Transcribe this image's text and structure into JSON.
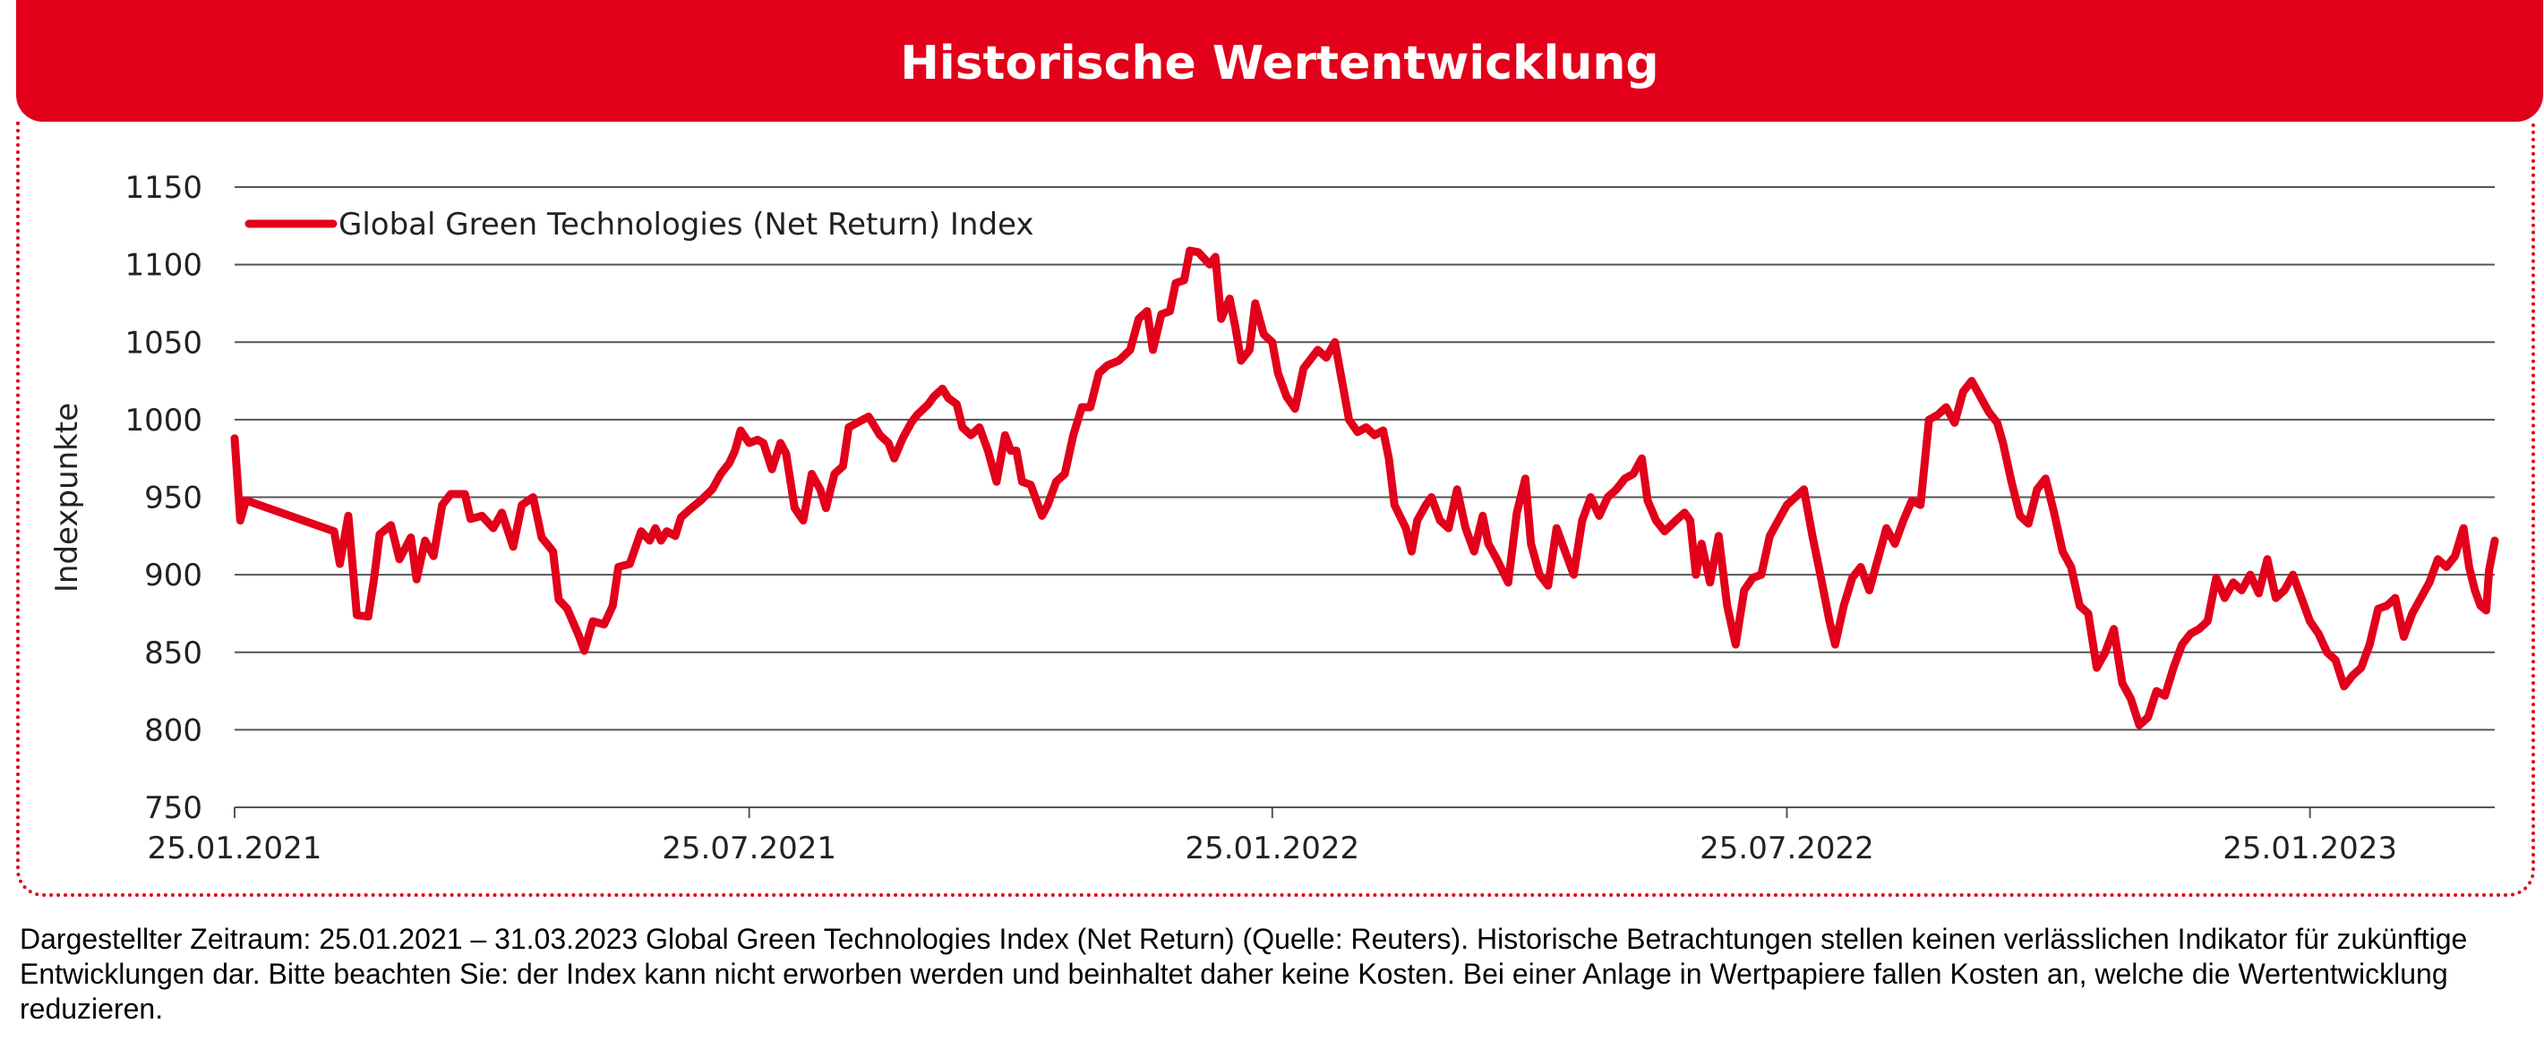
{
  "header": {
    "title": "Historische Wertentwicklung"
  },
  "colors": {
    "brand": "#e2001a",
    "grid": "#555555",
    "series": "#e2001a"
  },
  "footnote": "Dargestellter Zeitraum: 25.01.2021 – 31.03.2023 Global Green Technologies Index (Net Return) (Quelle: Reuters). Historische Betrachtungen stellen keinen verlässlichen Indikator für zukünftige Entwicklungen dar. Bitte beachten Sie: der Index kann nicht erworben werden und beinhaltet daher keine Kosten. Bei einer Anlage in Wertpapiere fallen Kosten an, welche die Wertentwicklung reduzieren.",
  "chart_data": {
    "type": "line",
    "title": "",
    "xlabel": "",
    "ylabel": "Indexpunkte",
    "ylim": [
      750,
      1150
    ],
    "yticks": [
      "750",
      "800",
      "850",
      "900",
      "950",
      "1000",
      "1050",
      "1100",
      "1150"
    ],
    "xrange": [
      "2021-01-25",
      "2023-03-31"
    ],
    "xticks": [
      {
        "date": "2021-01-25",
        "label": "25.01.2021"
      },
      {
        "date": "2021-07-25",
        "label": "25.07.2021"
      },
      {
        "date": "2022-01-25",
        "label": "25.01.2022"
      },
      {
        "date": "2022-07-25",
        "label": "25.07.2022"
      },
      {
        "date": "2023-01-25",
        "label": "25.01.2023"
      }
    ],
    "grid": true,
    "legend": "top-left",
    "series": [
      {
        "name": "Global Green Technologies (Net Return) Index",
        "points": [
          [
            "2021-01-25",
            988
          ],
          [
            "2021-01-27",
            935
          ],
          [
            "2021-01-29",
            948
          ],
          [
            "2021-03-01",
            928
          ],
          [
            "2021-03-03",
            907
          ],
          [
            "2021-03-06",
            938
          ],
          [
            "2021-03-09",
            874
          ],
          [
            "2021-03-13",
            873
          ],
          [
            "2021-03-15",
            897
          ],
          [
            "2021-03-17",
            926
          ],
          [
            "2021-03-21",
            932
          ],
          [
            "2021-03-24",
            910
          ],
          [
            "2021-03-28",
            924
          ],
          [
            "2021-03-30",
            897
          ],
          [
            "2021-04-02",
            922
          ],
          [
            "2021-04-05",
            912
          ],
          [
            "2021-04-08",
            945
          ],
          [
            "2021-04-11",
            952
          ],
          [
            "2021-04-16",
            952
          ],
          [
            "2021-04-18",
            936
          ],
          [
            "2021-04-22",
            938
          ],
          [
            "2021-04-26",
            930
          ],
          [
            "2021-04-29",
            940
          ],
          [
            "2021-05-03",
            918
          ],
          [
            "2021-05-06",
            945
          ],
          [
            "2021-05-10",
            950
          ],
          [
            "2021-05-13",
            924
          ],
          [
            "2021-05-17",
            915
          ],
          [
            "2021-05-19",
            884
          ],
          [
            "2021-05-22",
            878
          ],
          [
            "2021-05-26",
            861
          ],
          [
            "2021-05-28",
            851
          ],
          [
            "2021-05-31",
            870
          ],
          [
            "2021-06-04",
            868
          ],
          [
            "2021-06-07",
            880
          ],
          [
            "2021-06-09",
            905
          ],
          [
            "2021-06-13",
            907
          ],
          [
            "2021-06-17",
            928
          ],
          [
            "2021-06-20",
            922
          ],
          [
            "2021-06-22",
            930
          ],
          [
            "2021-06-24",
            922
          ],
          [
            "2021-06-26",
            928
          ],
          [
            "2021-06-29",
            925
          ],
          [
            "2021-07-01",
            937
          ],
          [
            "2021-07-04",
            942
          ],
          [
            "2021-07-08",
            948
          ],
          [
            "2021-07-12",
            955
          ],
          [
            "2021-07-15",
            965
          ],
          [
            "2021-07-18",
            972
          ],
          [
            "2021-07-20",
            980
          ],
          [
            "2021-07-22",
            993
          ],
          [
            "2021-07-25",
            985
          ],
          [
            "2021-07-28",
            987
          ],
          [
            "2021-07-30",
            985
          ],
          [
            "2021-08-02",
            968
          ],
          [
            "2021-08-05",
            985
          ],
          [
            "2021-08-07",
            978
          ],
          [
            "2021-08-10",
            943
          ],
          [
            "2021-08-13",
            935
          ],
          [
            "2021-08-16",
            965
          ],
          [
            "2021-08-19",
            955
          ],
          [
            "2021-08-21",
            943
          ],
          [
            "2021-08-24",
            965
          ],
          [
            "2021-08-27",
            970
          ],
          [
            "2021-08-29",
            995
          ],
          [
            "2021-09-01",
            998
          ],
          [
            "2021-09-05",
            1002
          ],
          [
            "2021-09-09",
            990
          ],
          [
            "2021-09-12",
            985
          ],
          [
            "2021-09-14",
            975
          ],
          [
            "2021-09-17",
            988
          ],
          [
            "2021-09-20",
            998
          ],
          [
            "2021-09-22",
            1003
          ],
          [
            "2021-09-26",
            1010
          ],
          [
            "2021-09-28",
            1015
          ],
          [
            "2021-10-01",
            1020
          ],
          [
            "2021-10-03",
            1014
          ],
          [
            "2021-10-06",
            1010
          ],
          [
            "2021-10-08",
            995
          ],
          [
            "2021-10-11",
            990
          ],
          [
            "2021-10-14",
            995
          ],
          [
            "2021-10-17",
            980
          ],
          [
            "2021-10-20",
            960
          ],
          [
            "2021-10-23",
            990
          ],
          [
            "2021-10-25",
            980
          ],
          [
            "2021-10-27",
            980
          ],
          [
            "2021-10-29",
            960
          ],
          [
            "2021-11-01",
            958
          ],
          [
            "2021-11-05",
            938
          ],
          [
            "2021-11-07",
            945
          ],
          [
            "2021-11-10",
            960
          ],
          [
            "2021-11-13",
            965
          ],
          [
            "2021-11-16",
            990
          ],
          [
            "2021-11-19",
            1008
          ],
          [
            "2021-11-22",
            1008
          ],
          [
            "2021-11-25",
            1030
          ],
          [
            "2021-11-28",
            1035
          ],
          [
            "2021-12-02",
            1038
          ],
          [
            "2021-12-06",
            1045
          ],
          [
            "2021-12-09",
            1065
          ],
          [
            "2021-12-12",
            1070
          ],
          [
            "2021-12-14",
            1045
          ],
          [
            "2021-12-17",
            1068
          ],
          [
            "2021-12-20",
            1070
          ],
          [
            "2021-12-22",
            1088
          ],
          [
            "2021-12-25",
            1090
          ],
          [
            "2021-12-27",
            1109
          ],
          [
            "2021-12-30",
            1108
          ],
          [
            "2022-01-03",
            1100
          ],
          [
            "2022-01-05",
            1105
          ],
          [
            "2022-01-07",
            1065
          ],
          [
            "2022-01-10",
            1078
          ],
          [
            "2022-01-12",
            1060
          ],
          [
            "2022-01-14",
            1038
          ],
          [
            "2022-01-17",
            1045
          ],
          [
            "2022-01-19",
            1075
          ],
          [
            "2022-01-22",
            1055
          ],
          [
            "2022-01-25",
            1050
          ],
          [
            "2022-01-27",
            1030
          ],
          [
            "2022-01-30",
            1015
          ],
          [
            "2022-02-02",
            1007
          ],
          [
            "2022-02-05",
            1033
          ],
          [
            "2022-02-10",
            1045
          ],
          [
            "2022-02-13",
            1040
          ],
          [
            "2022-02-16",
            1050
          ],
          [
            "2022-02-19",
            1020
          ],
          [
            "2022-02-21",
            1000
          ],
          [
            "2022-02-24",
            992
          ],
          [
            "2022-02-27",
            995
          ],
          [
            "2022-03-02",
            990
          ],
          [
            "2022-03-05",
            993
          ],
          [
            "2022-03-07",
            975
          ],
          [
            "2022-03-09",
            945
          ],
          [
            "2022-03-13",
            930
          ],
          [
            "2022-03-15",
            915
          ],
          [
            "2022-03-17",
            935
          ],
          [
            "2022-03-20",
            945
          ],
          [
            "2022-03-22",
            950
          ],
          [
            "2022-03-25",
            935
          ],
          [
            "2022-03-28",
            930
          ],
          [
            "2022-03-31",
            955
          ],
          [
            "2022-04-03",
            930
          ],
          [
            "2022-04-06",
            915
          ],
          [
            "2022-04-09",
            938
          ],
          [
            "2022-04-11",
            920
          ],
          [
            "2022-04-14",
            910
          ],
          [
            "2022-04-18",
            895
          ],
          [
            "2022-04-21",
            940
          ],
          [
            "2022-04-24",
            962
          ],
          [
            "2022-04-26",
            920
          ],
          [
            "2022-04-29",
            900
          ],
          [
            "2022-05-02",
            893
          ],
          [
            "2022-05-05",
            930
          ],
          [
            "2022-05-08",
            915
          ],
          [
            "2022-05-11",
            900
          ],
          [
            "2022-05-14",
            935
          ],
          [
            "2022-05-17",
            950
          ],
          [
            "2022-05-20",
            938
          ],
          [
            "2022-05-23",
            950
          ],
          [
            "2022-05-26",
            955
          ],
          [
            "2022-05-29",
            962
          ],
          [
            "2022-06-01",
            965
          ],
          [
            "2022-06-04",
            975
          ],
          [
            "2022-06-06",
            948
          ],
          [
            "2022-06-09",
            935
          ],
          [
            "2022-06-12",
            928
          ],
          [
            "2022-06-16",
            935
          ],
          [
            "2022-06-19",
            940
          ],
          [
            "2022-06-21",
            935
          ],
          [
            "2022-06-23",
            900
          ],
          [
            "2022-06-25",
            920
          ],
          [
            "2022-06-28",
            895
          ],
          [
            "2022-07-01",
            925
          ],
          [
            "2022-07-04",
            880
          ],
          [
            "2022-07-07",
            855
          ],
          [
            "2022-07-10",
            890
          ],
          [
            "2022-07-13",
            898
          ],
          [
            "2022-07-16",
            900
          ],
          [
            "2022-07-19",
            925
          ],
          [
            "2022-07-22",
            935
          ],
          [
            "2022-07-25",
            945
          ],
          [
            "2022-07-28",
            950
          ],
          [
            "2022-07-31",
            955
          ],
          [
            "2022-08-03",
            925
          ],
          [
            "2022-08-06",
            898
          ],
          [
            "2022-08-09",
            870
          ],
          [
            "2022-08-11",
            855
          ],
          [
            "2022-08-14",
            880
          ],
          [
            "2022-08-17",
            898
          ],
          [
            "2022-08-20",
            905
          ],
          [
            "2022-08-23",
            890
          ],
          [
            "2022-08-26",
            910
          ],
          [
            "2022-08-29",
            930
          ],
          [
            "2022-09-01",
            920
          ],
          [
            "2022-09-04",
            935
          ],
          [
            "2022-09-07",
            948
          ],
          [
            "2022-09-10",
            945
          ],
          [
            "2022-09-13",
            1000
          ],
          [
            "2022-09-16",
            1003
          ],
          [
            "2022-09-19",
            1008
          ],
          [
            "2022-09-22",
            998
          ],
          [
            "2022-09-25",
            1018
          ],
          [
            "2022-09-28",
            1025
          ],
          [
            "2022-10-01",
            1015
          ],
          [
            "2022-10-04",
            1005
          ],
          [
            "2022-10-07",
            998
          ],
          [
            "2022-10-09",
            985
          ],
          [
            "2022-10-12",
            960
          ],
          [
            "2022-10-15",
            938
          ],
          [
            "2022-10-18",
            933
          ],
          [
            "2022-10-21",
            955
          ],
          [
            "2022-10-24",
            962
          ],
          [
            "2022-10-27",
            940
          ],
          [
            "2022-10-30",
            915
          ],
          [
            "2022-11-02",
            905
          ],
          [
            "2022-11-05",
            880
          ],
          [
            "2022-11-08",
            875
          ],
          [
            "2022-11-11",
            840
          ],
          [
            "2022-11-14",
            850
          ],
          [
            "2022-11-17",
            865
          ],
          [
            "2022-11-20",
            830
          ],
          [
            "2022-11-23",
            820
          ],
          [
            "2022-11-26",
            803
          ],
          [
            "2022-11-29",
            808
          ],
          [
            "2022-12-02",
            825
          ],
          [
            "2022-12-05",
            822
          ],
          [
            "2022-12-08",
            840
          ],
          [
            "2022-12-11",
            855
          ],
          [
            "2022-12-14",
            862
          ],
          [
            "2022-12-17",
            865
          ],
          [
            "2022-12-20",
            870
          ],
          [
            "2022-12-23",
            898
          ],
          [
            "2022-12-26",
            885
          ],
          [
            "2022-12-29",
            895
          ],
          [
            "2023-01-01",
            890
          ],
          [
            "2023-01-04",
            900
          ],
          [
            "2023-01-07",
            888
          ],
          [
            "2023-01-10",
            910
          ],
          [
            "2023-01-13",
            885
          ],
          [
            "2023-01-16",
            890
          ],
          [
            "2023-01-19",
            900
          ],
          [
            "2023-01-22",
            885
          ],
          [
            "2023-01-25",
            870
          ],
          [
            "2023-01-28",
            862
          ],
          [
            "2023-01-31",
            850
          ],
          [
            "2023-02-03",
            845
          ],
          [
            "2023-02-06",
            828
          ],
          [
            "2023-02-09",
            835
          ],
          [
            "2023-02-12",
            840
          ],
          [
            "2023-02-15",
            855
          ],
          [
            "2023-02-18",
            878
          ],
          [
            "2023-02-21",
            880
          ],
          [
            "2023-02-24",
            885
          ],
          [
            "2023-02-27",
            860
          ],
          [
            "2023-03-02",
            875
          ],
          [
            "2023-03-05",
            885
          ],
          [
            "2023-03-08",
            895
          ],
          [
            "2023-03-11",
            910
          ],
          [
            "2023-03-14",
            905
          ],
          [
            "2023-03-17",
            912
          ],
          [
            "2023-03-20",
            930
          ],
          [
            "2023-03-22",
            905
          ],
          [
            "2023-03-24",
            890
          ],
          [
            "2023-03-26",
            880
          ],
          [
            "2023-03-28",
            877
          ],
          [
            "2023-03-29",
            903
          ],
          [
            "2023-03-31",
            922
          ]
        ]
      }
    ]
  }
}
